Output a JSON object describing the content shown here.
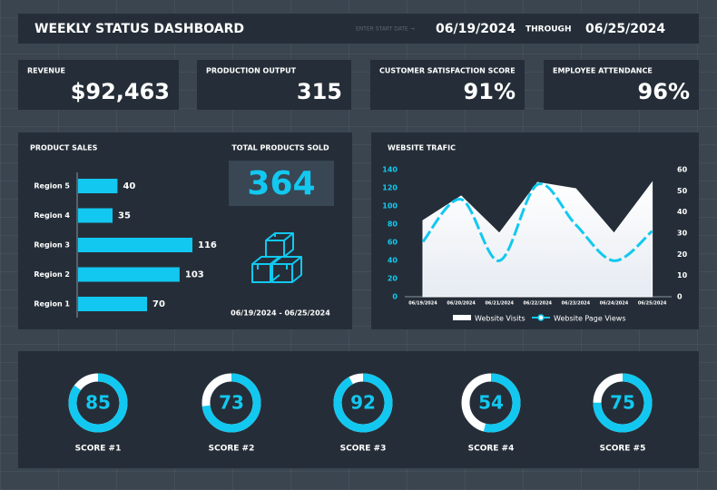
{
  "header": {
    "title": "WEEKLY STATUS DASHBOARD",
    "start_label": "ENTER START DATE →",
    "start_date": "06/19/2024",
    "through": "THROUGH",
    "end_date": "06/25/2024"
  },
  "kpis": [
    {
      "label": "REVENUE",
      "value": "$92,463"
    },
    {
      "label": "PRODUCTION OUTPUT",
      "value": "315"
    },
    {
      "label": "CUSTOMER SATISFACTION SCORE",
      "value": "91%"
    },
    {
      "label": "EMPLOYEE ATTENDANCE",
      "value": "96%"
    }
  ],
  "product_sales": {
    "type": "bar",
    "title": "PRODUCT SALES",
    "categories": [
      "Region 5",
      "Region 4",
      "Region 3",
      "Region 2",
      "Region 1"
    ],
    "values": [
      40,
      35,
      116,
      103,
      70
    ],
    "color": "#12c8f0"
  },
  "total_sold": {
    "label": "TOTAL PRODUCTS SOLD",
    "value": "364",
    "date_range": "06/19/2024 - 06/25/2024"
  },
  "website_traffic": {
    "type": "area-line",
    "title": "WEBSITE TRAFIC",
    "x": [
      "06/19/2024",
      "06/20/2024",
      "06/21/2024",
      "06/22/2024",
      "06/23/2024",
      "06/24/2024",
      "06/25/2024"
    ],
    "series": [
      {
        "name": "Website Visits",
        "color": "#ffffff",
        "values": [
          84,
          111,
          70,
          126,
          119,
          70,
          126
        ]
      },
      {
        "name": "Website Page Views",
        "color": "#12c8f0",
        "axis": "y2",
        "values": [
          26,
          46,
          17,
          53,
          34,
          17,
          31
        ]
      }
    ],
    "ylim": [
      0,
      140
    ],
    "yticks": [
      0,
      20,
      40,
      60,
      80,
      100,
      120,
      140
    ],
    "y2lim": [
      0,
      60
    ],
    "y2ticks": [
      0,
      10,
      20,
      30,
      40,
      50,
      60
    ]
  },
  "scores": {
    "color": "#12c8f0",
    "track_color": "#ffffff",
    "items": [
      {
        "label": "SCORE #1",
        "value": 85
      },
      {
        "label": "SCORE #2",
        "value": 73
      },
      {
        "label": "SCORE #3",
        "value": 92
      },
      {
        "label": "SCORE #4",
        "value": 54
      },
      {
        "label": "SCORE #5",
        "value": 75
      }
    ]
  }
}
